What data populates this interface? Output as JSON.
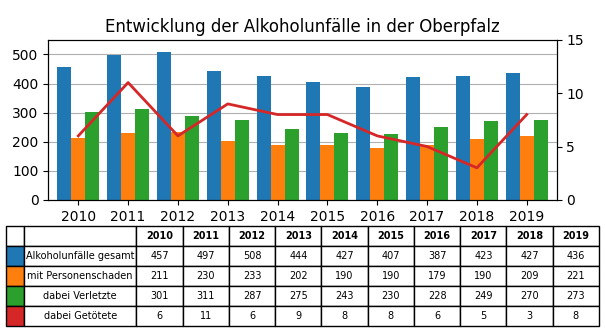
{
  "chart_data": {
    "type": "bar",
    "title": "Entwicklung der Alkoholunfälle in der Oberpfalz",
    "categories": [
      "2010",
      "2011",
      "2012",
      "2013",
      "2014",
      "2015",
      "2016",
      "2017",
      "2018",
      "2019"
    ],
    "series": [
      {
        "name": "Alkoholunfälle gesamt",
        "type": "bar",
        "values": [
          457,
          497,
          508,
          444,
          427,
          407,
          387,
          423,
          427,
          436
        ]
      },
      {
        "name": "mit Personenschaden",
        "type": "bar",
        "values": [
          211,
          230,
          233,
          202,
          190,
          190,
          179,
          190,
          209,
          221
        ]
      },
      {
        "name": "dabei Verletzte",
        "type": "bar",
        "values": [
          301,
          311,
          287,
          275,
          243,
          230,
          228,
          249,
          270,
          273
        ]
      },
      {
        "name": "dabei Getötete",
        "type": "line",
        "axis": "y2",
        "values": [
          6,
          11,
          6,
          9,
          8,
          8,
          6,
          5,
          3,
          8
        ]
      }
    ],
    "ylim": [
      0,
      550
    ],
    "yticks": [
      0,
      100,
      200,
      300,
      400,
      500
    ],
    "y2lim": [
      0,
      15
    ],
    "y2ticks": [
      0,
      5,
      10,
      15
    ],
    "grid": true
  }
}
